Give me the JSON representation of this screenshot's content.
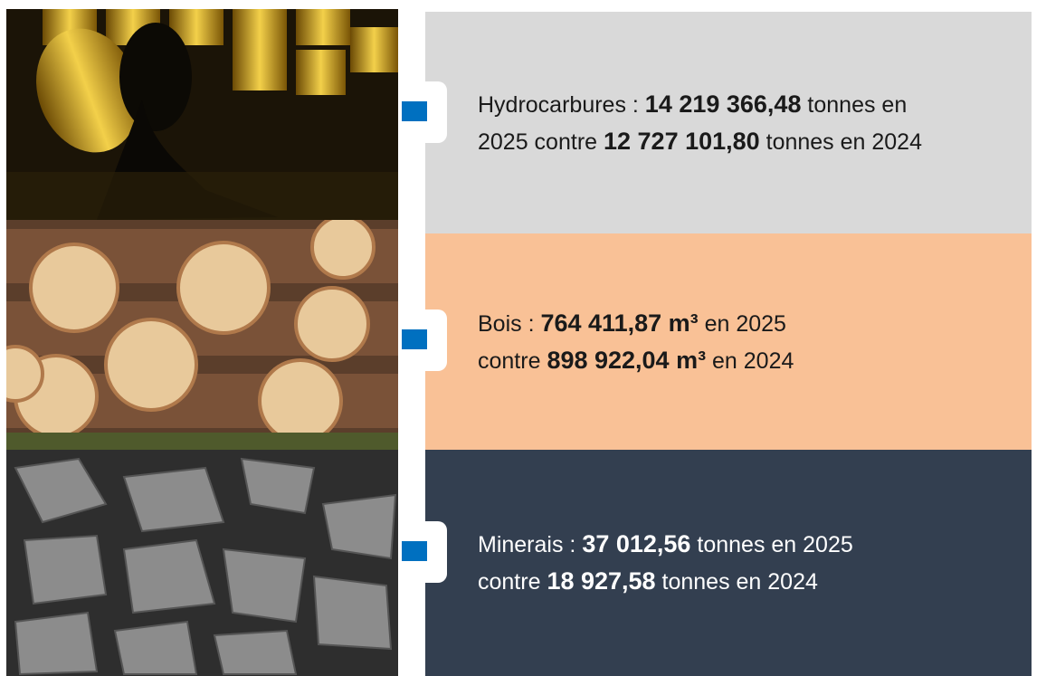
{
  "sections": [
    {
      "color": "#d9d9d9",
      "text_color": "#1a1a1a",
      "lines": [
        [
          {
            "text": "Hydrocarbures : ",
            "bold": false
          },
          {
            "text": "14 219 366,48",
            "bold": true
          },
          {
            "text": " tonnes en",
            "bold": false
          }
        ],
        [
          {
            "text": "2025 contre ",
            "bold": false
          },
          {
            "text": "12 727 101,80",
            "bold": true
          },
          {
            "text": " tonnes en 2024",
            "bold": false
          }
        ]
      ]
    },
    {
      "color": "#f9c196",
      "text_color": "#1a1a1a",
      "lines": [
        [
          {
            "text": "Bois : ",
            "bold": false
          },
          {
            "text": "764 411,87 m³",
            "bold": true
          },
          {
            "text": " en 2025",
            "bold": false
          }
        ],
        [
          {
            "text": "contre ",
            "bold": false
          },
          {
            "text": "898 922,04 m³",
            "bold": true
          },
          {
            "text": " en 2024",
            "bold": false
          }
        ]
      ]
    },
    {
      "color": "#333f50",
      "text_color": "#ffffff",
      "lines": [
        [
          {
            "text": "Minerais : ",
            "bold": false
          },
          {
            "text": "37 012,56",
            "bold": true
          },
          {
            "text": " tonnes en 2025",
            "bold": false
          }
        ],
        [
          {
            "text": "contre ",
            "bold": false
          },
          {
            "text": "18 927,58",
            "bold": true
          },
          {
            "text": " tonnes en 2024",
            "bold": false
          }
        ]
      ]
    }
  ]
}
